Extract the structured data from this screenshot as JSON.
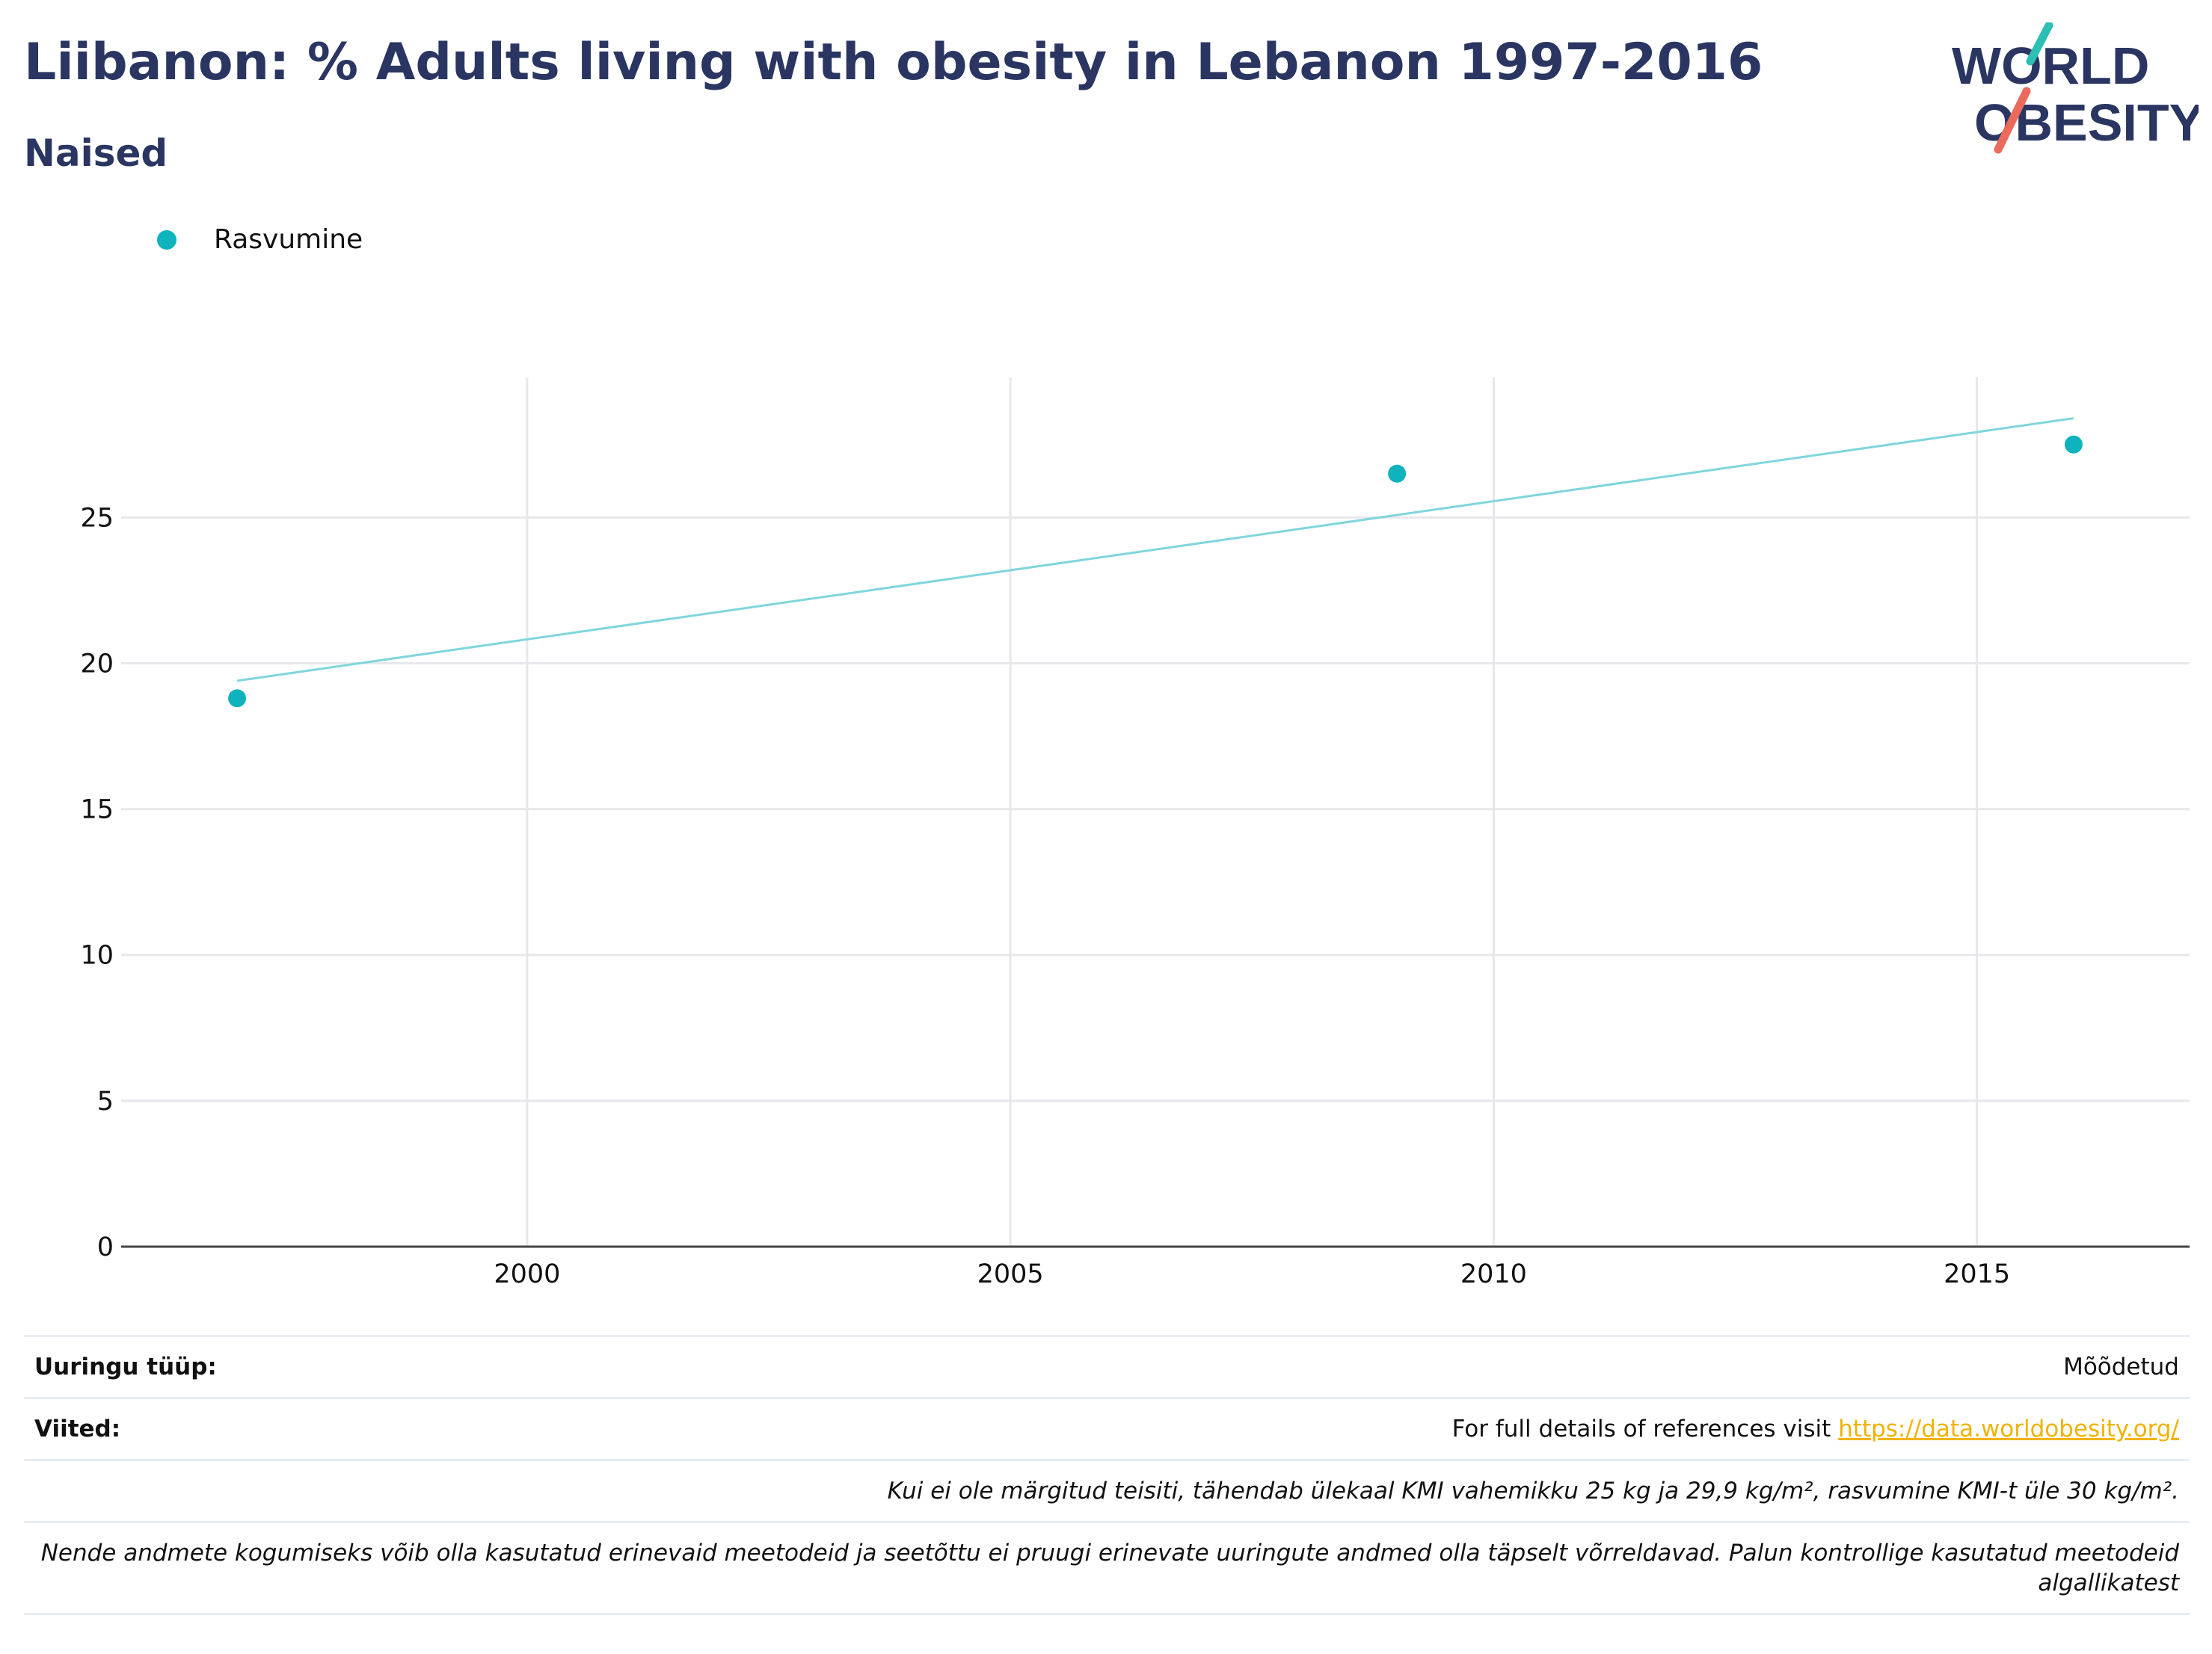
{
  "header": {
    "title": "Liibanon: % Adults living with obesity in Lebanon 1997-2016",
    "subtitle": "Naised"
  },
  "logo": {
    "line1": "WORLD",
    "line2": "OBESITY",
    "accent_teal": "#2cbfb4",
    "accent_red": "#ea6a5c",
    "text_color": "#2a3561"
  },
  "legend": {
    "label": "Rasvumine",
    "color": "#0fb3bd"
  },
  "chart_data": {
    "type": "scatter",
    "title": "Liibanon: % Adults living with obesity in Lebanon 1997-2016",
    "subtitle": "Naised",
    "xlabel": "",
    "ylabel": "",
    "xlim": [
      1995.8,
      2017.2
    ],
    "ylim": [
      0,
      29.8
    ],
    "x_ticks": [
      2000,
      2005,
      2010,
      2015
    ],
    "y_ticks": [
      0,
      5,
      10,
      15,
      20,
      25
    ],
    "grid": true,
    "legend_position": "top-left",
    "series": [
      {
        "name": "Rasvumine",
        "color": "#0fb3bd",
        "points": [
          {
            "x": 1997,
            "y": 18.8
          },
          {
            "x": 2009,
            "y": 26.5
          },
          {
            "x": 2016,
            "y": 27.5
          }
        ]
      }
    ],
    "trendline": {
      "color": "#7fd6db",
      "points": [
        {
          "x": 1997,
          "y": 19.4
        },
        {
          "x": 2016,
          "y": 28.4
        }
      ]
    }
  },
  "footer": {
    "survey_type_label": "Uuringu tüüp:",
    "survey_type_value": "Mõõdetud",
    "references_label": "Viited:",
    "references_text": "For full details of references visit ",
    "references_link": "https://data.worldobesity.org/",
    "bmi_note": "Kui ei ole märgitud teisiti, tähendab ülekaal KMI vahemikku 25 kg ja 29,9 kg/m², rasvumine KMI-t üle 30 kg/m².",
    "methods_note": "Nende andmete kogumiseks võib olla kasutatud erinevaid meetodeid ja seetõttu ei pruugi erinevate uuringute andmed olla täpselt võrreldavad. Palun kontrollige kasutatud meetodeid algallikatest"
  }
}
